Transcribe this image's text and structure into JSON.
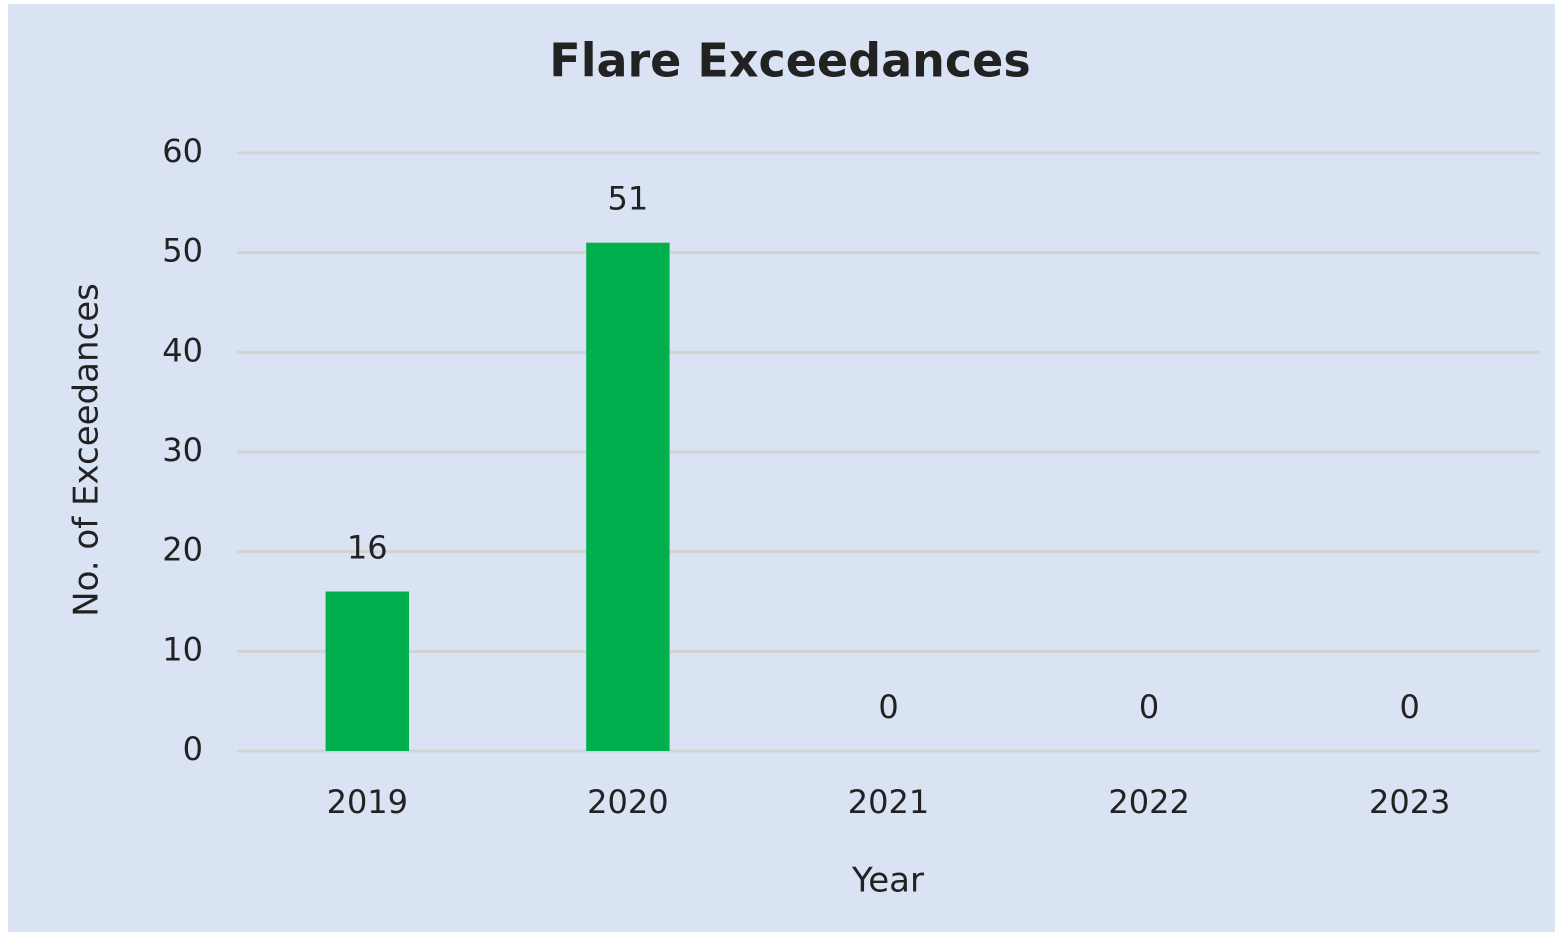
{
  "chart_data": {
    "type": "bar",
    "title": "Flare Exceedances",
    "x_label": "Year",
    "y_label": "No. of Exceedances",
    "categories": [
      "2019",
      "2020",
      "2021",
      "2022",
      "2023"
    ],
    "values": [
      16,
      51,
      0,
      0,
      0
    ],
    "color": "#00b04f",
    "ylim": [
      0,
      60
    ],
    "yticks": [
      0,
      10,
      20,
      30,
      40,
      50,
      60
    ],
    "grid": true
  }
}
